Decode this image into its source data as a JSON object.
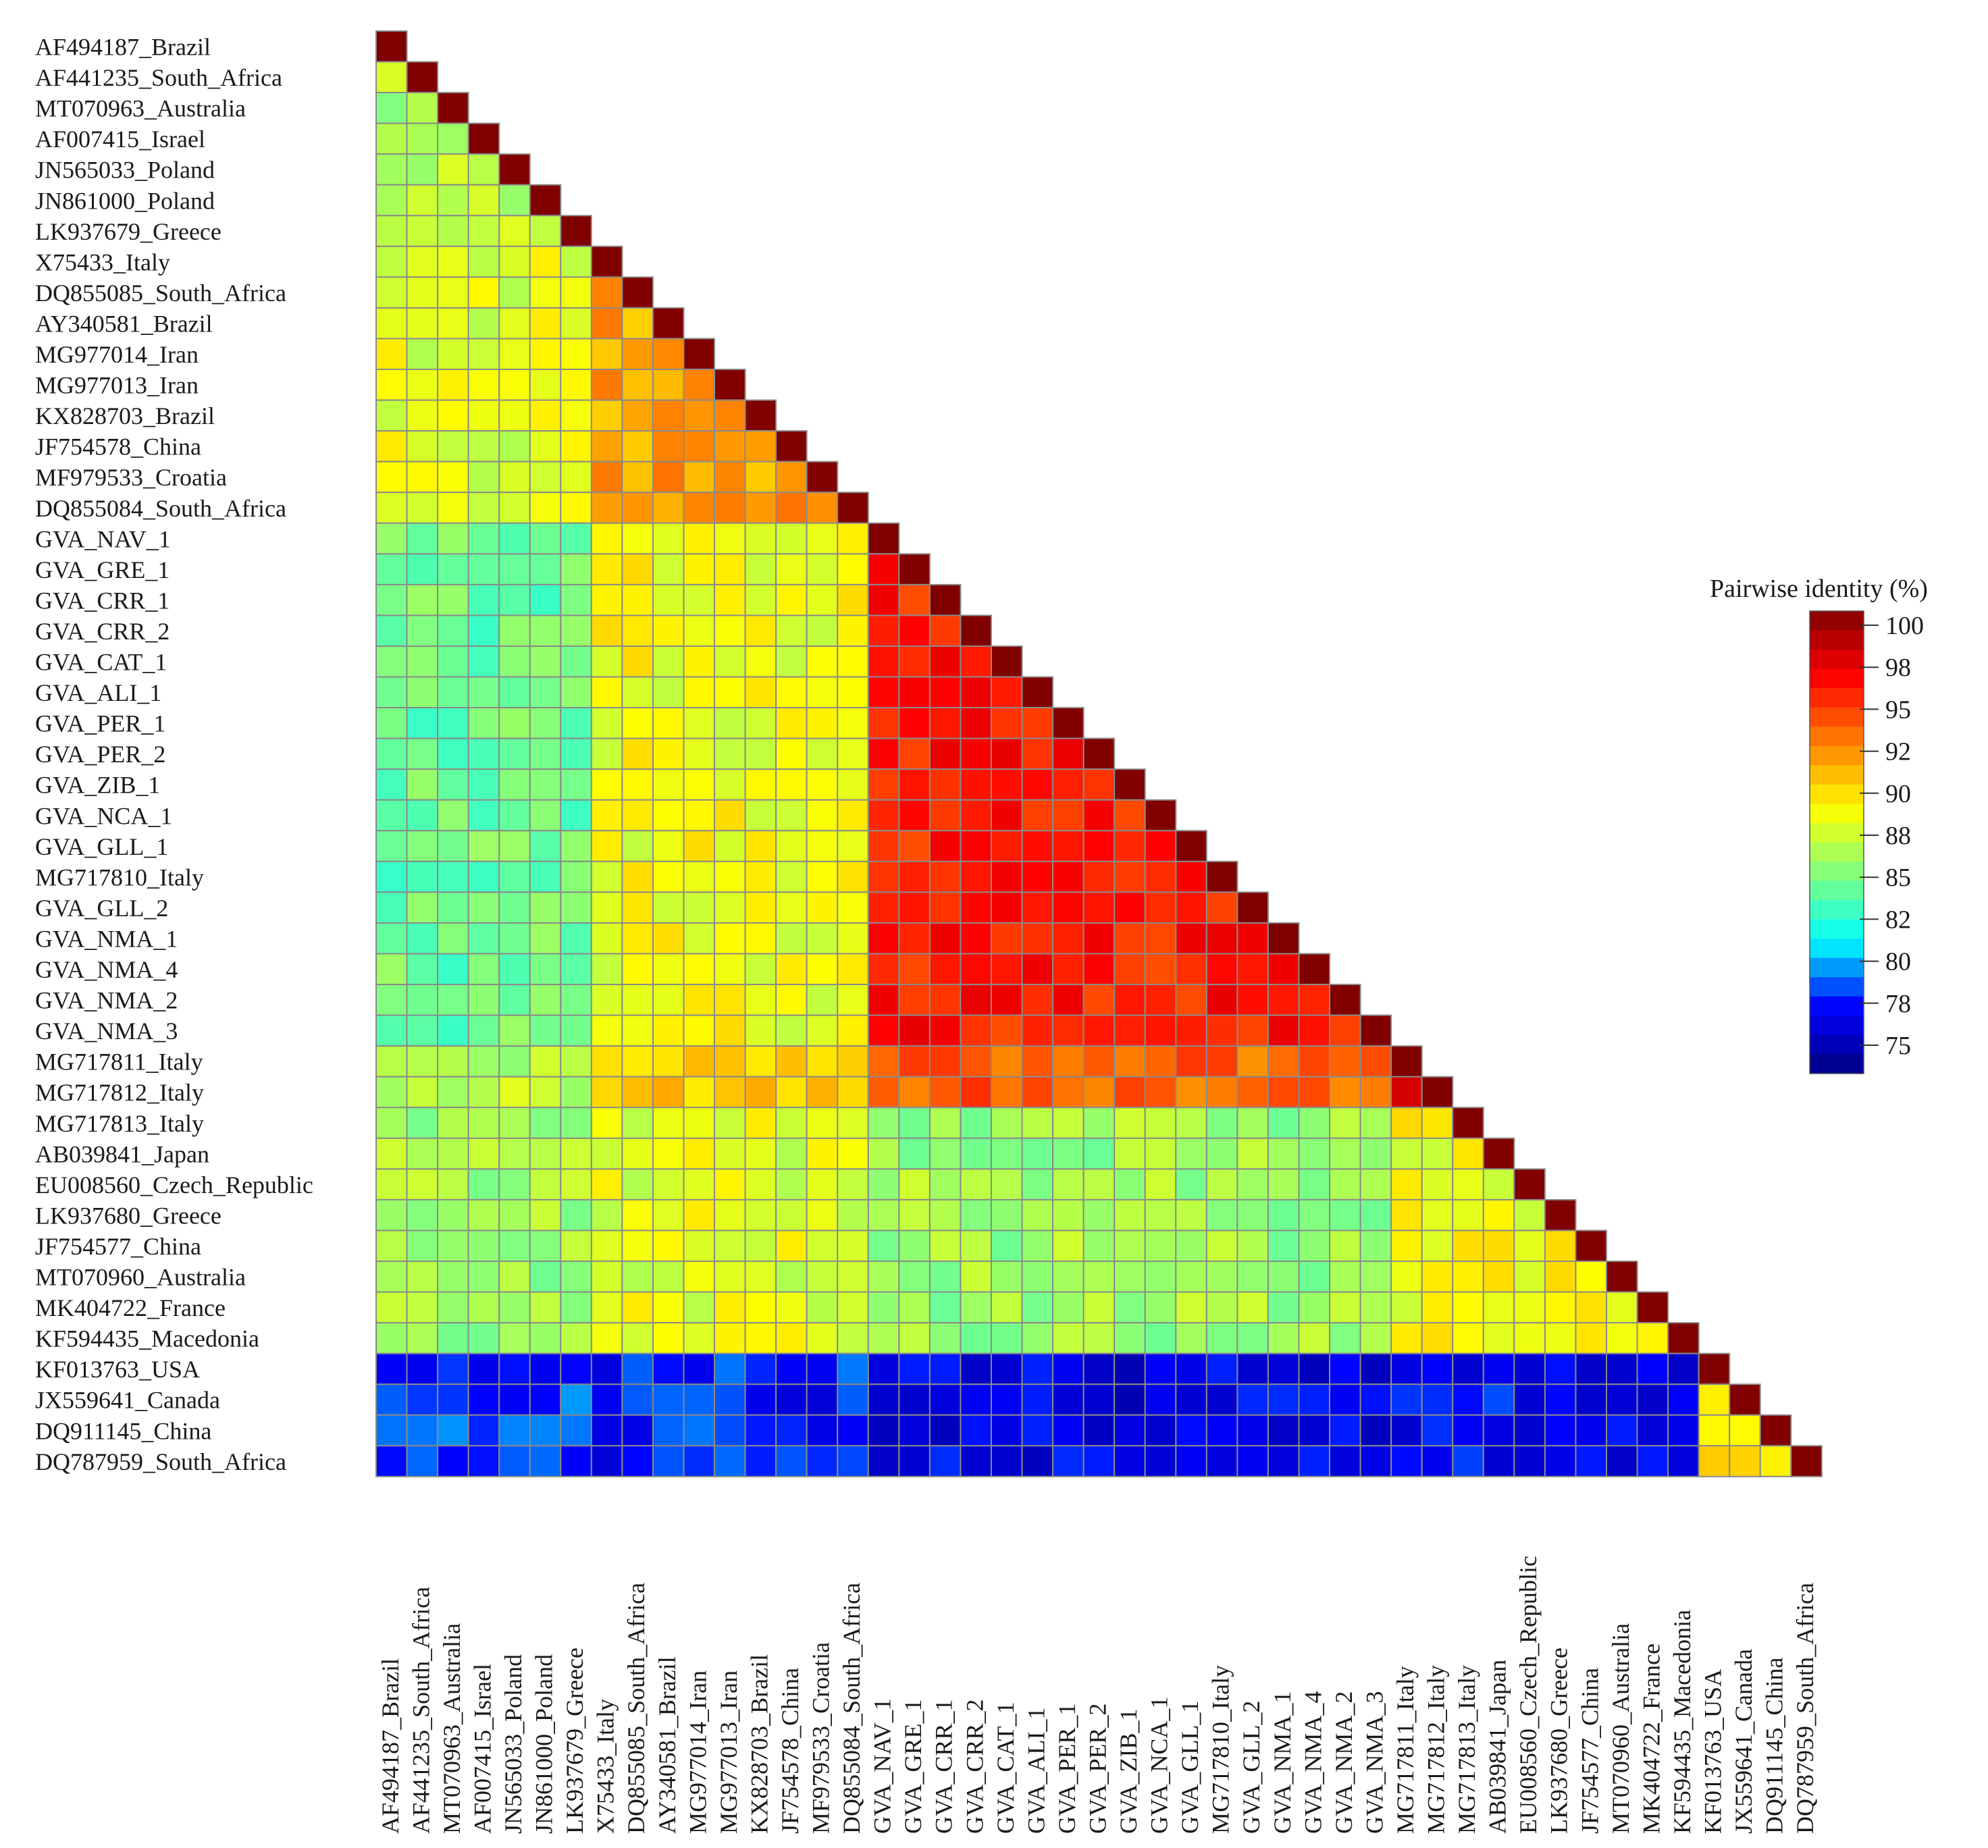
{
  "chart_data": {
    "type": "heatmap",
    "layout": "lower-triangle",
    "labels": [
      "AF494187_Brazil",
      "AF441235_South_Africa",
      "MT070963_Australia",
      "AF007415_Israel",
      "JN565033_Poland",
      "JN861000_Poland",
      "LK937679_Greece",
      "X75433_Italy",
      "DQ855085_South_Africa",
      "AY340581_Brazil",
      "MG977014_Iran",
      "MG977013_Iran",
      "KX828703_Brazil",
      "JF754578_China",
      "MF979533_Croatia",
      "DQ855084_South_Africa",
      "GVA_NAV_1",
      "GVA_GRE_1",
      "GVA_CRR_1",
      "GVA_CRR_2",
      "GVA_CAT_1",
      "GVA_ALI_1",
      "GVA_PER_1",
      "GVA_PER_2",
      "GVA_ZIB_1",
      "GVA_NCA_1",
      "GVA_GLL_1",
      "MG717810_Italy",
      "GVA_GLL_2",
      "GVA_NMA_1",
      "GVA_NMA_4",
      "GVA_NMA_2",
      "GVA_NMA_3",
      "MG717811_Italy",
      "MG717812_Italy",
      "MG717813_Italy",
      "AB039841_Japan",
      "EU008560_Czech_Republic",
      "LK937680_Greece",
      "JF754577_China",
      "MT070960_Australia",
      "MK404722_France",
      "KF594435_Macedonia",
      "KF013763_USA",
      "JX559641_Canada",
      "DQ911145_China",
      "DQ787959_South_Africa"
    ],
    "groups": {
      "A": [
        "AF494187_Brazil",
        "AF441235_South_Africa",
        "MT070963_Australia",
        "AF007415_Israel",
        "JN565033_Poland",
        "JN861000_Poland",
        "LK937679_Greece"
      ],
      "B": [
        "X75433_Italy",
        "DQ855085_South_Africa",
        "AY340581_Brazil",
        "MG977014_Iran",
        "MG977013_Iran",
        "KX828703_Brazil",
        "JF754578_China",
        "MF979533_Croatia",
        "DQ855084_South_Africa"
      ],
      "C": [
        "GVA_NAV_1",
        "GVA_GRE_1",
        "GVA_CRR_1",
        "GVA_CRR_2",
        "GVA_CAT_1",
        "GVA_ALI_1",
        "GVA_PER_1",
        "GVA_PER_2",
        "GVA_ZIB_1",
        "GVA_NCA_1",
        "GVA_GLL_1",
        "MG717810_Italy",
        "GVA_GLL_2",
        "GVA_NMA_1",
        "GVA_NMA_4",
        "GVA_NMA_2",
        "GVA_NMA_3"
      ],
      "D": [
        "MG717811_Italy",
        "MG717812_Italy"
      ],
      "E": [
        "MG717813_Italy",
        "AB039841_Japan",
        "EU008560_Czech_Republic",
        "LK937680_Greece",
        "JF754577_China",
        "MT070960_Australia",
        "MK404722_France",
        "KF594435_Macedonia"
      ],
      "F": [
        "KF013763_USA",
        "JX559641_Canada",
        "DQ911145_China",
        "DQ787959_South_Africa"
      ]
    },
    "group_identity_approx": {
      "A-A": 86.5,
      "B-A": 88,
      "B-B": 91.5,
      "C-A": 84.5,
      "C-B": 88.5,
      "C-C": 95.5,
      "D-A": 87,
      "D-B": 90,
      "D-C": 93.5,
      "D-D": 99,
      "E-A": 86,
      "E-B": 88,
      "E-C": 86,
      "E-D": 88.5,
      "E-E": 88.5,
      "F-A": 78.5,
      "F-B": 78,
      "F-C": 77,
      "F-D": 77.5,
      "F-E": 77.5,
      "F-F": 89
    },
    "diagonal_value": 100,
    "legend": {
      "title": "Pairwise identity (%)",
      "ticks": [
        "100",
        "98",
        "95",
        "92",
        "90",
        "88",
        "85",
        "82",
        "80",
        "78",
        "75"
      ],
      "range": [
        74,
        100
      ]
    },
    "colors": [
      "#000080",
      "#0000ff",
      "#00ffff",
      "#80ff80",
      "#ffff00",
      "#ff8000",
      "#ff0000",
      "#800000"
    ]
  }
}
